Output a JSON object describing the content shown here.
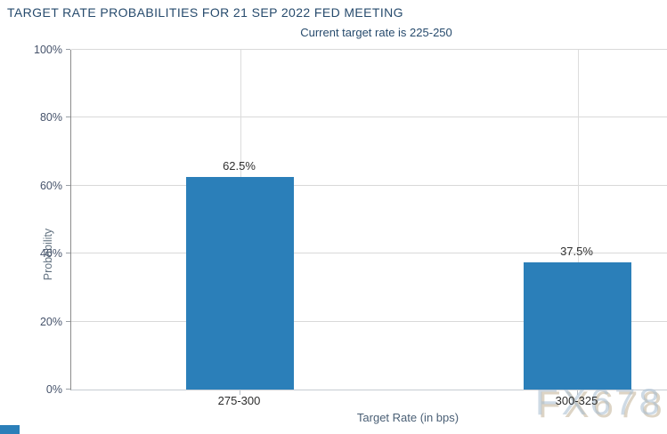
{
  "chart_data": {
    "type": "bar",
    "title": "TARGET RATE PROBABILITIES FOR 21 SEP 2022 FED MEETING",
    "subtitle": "Current target rate is 225-250",
    "xlabel": "Target Rate (in bps)",
    "ylabel": "Probability",
    "categories": [
      "275-300",
      "300-325"
    ],
    "values": [
      62.5,
      37.5
    ],
    "value_labels": [
      "62.5%",
      "37.5%"
    ],
    "ylim": [
      0,
      100
    ],
    "ytick_step": 20,
    "ytick_labels": [
      "0%",
      "20%",
      "40%",
      "60%",
      "80%",
      "100%"
    ],
    "grid": true,
    "legend": "none",
    "bar_color": "#2b7fb9",
    "title_color": "#274b6d"
  },
  "watermark": {
    "text": "FX678"
  },
  "decorations": {
    "corner_square_color": "#2b7fb9"
  }
}
